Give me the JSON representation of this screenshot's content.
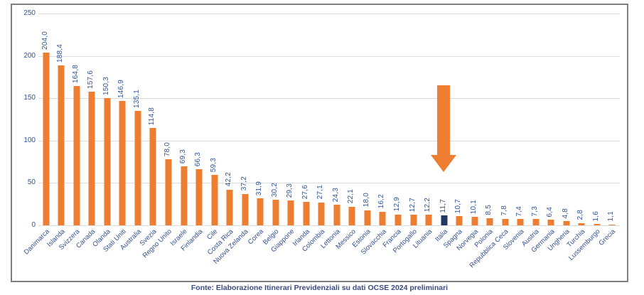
{
  "chart_data": {
    "type": "bar",
    "title": "",
    "xlabel": "",
    "ylabel": "",
    "categories": [
      "Danimarca",
      "Islanda",
      "Svizzera",
      "Canada",
      "Olanda",
      "Stati Uniti",
      "Australia",
      "Svezia",
      "Regno Unito",
      "Israele",
      "Finlandia",
      "Cile",
      "Costa Rica",
      "Nuova Zelanda",
      "Corea",
      "Belgio",
      "Giappone",
      "Irlanda",
      "Colombia",
      "Lettonia",
      "Messico",
      "Estonia",
      "Slovacchia",
      "Francia",
      "Portogallo",
      "Lituania",
      "Italia",
      "Spagna",
      "Norvegia",
      "Polonia",
      "Repubblica Ceca",
      "Slovenia",
      "Austria",
      "Germania",
      "Ungheria",
      "Turchia",
      "Lussemburgo",
      "Grecia"
    ],
    "values": [
      204.0,
      188.4,
      164.8,
      157.6,
      150.3,
      146.9,
      135.1,
      114.8,
      78.0,
      69.3,
      66.3,
      59.3,
      42.2,
      37.2,
      31.9,
      30.2,
      29.3,
      27.6,
      27.1,
      24.3,
      22.1,
      18.0,
      16.2,
      12.9,
      12.7,
      12.2,
      11.7,
      10.7,
      10.1,
      8.5,
      7.8,
      7.4,
      7.3,
      6.4,
      4.8,
      2.8,
      1.6,
      1.1
    ],
    "decimal_separator": ",",
    "ylim": [
      0,
      250
    ],
    "y_ticks": [
      250,
      200,
      150,
      100,
      50,
      0
    ],
    "grid": true,
    "legend": false,
    "bar_color": "#ed7d31",
    "highlight_color": "#1f3864",
    "highlight_category": "Italia",
    "highlight_index": 26,
    "annotation": {
      "type": "down-arrow",
      "target_category": "Italia",
      "color": "#ed7d31"
    }
  },
  "footer": {
    "source": "Fonte: Elaborazione Itinerari Previdenziali su dati OCSE 2024 preliminari"
  },
  "colors": {
    "bar": "#ed7d31",
    "highlight_bar": "#1f3864",
    "label_text": "#2f5496",
    "gridline": "#dcdcdc",
    "frame_border": "#7f7f7f"
  }
}
